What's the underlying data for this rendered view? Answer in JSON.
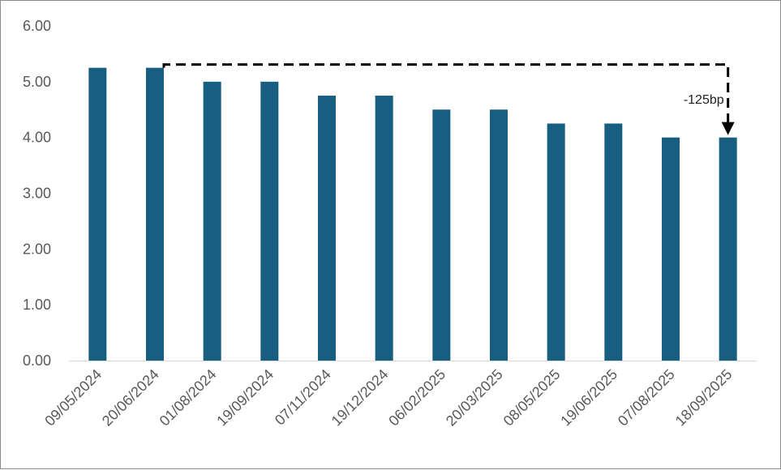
{
  "chart_data": {
    "type": "bar",
    "title": "",
    "xlabel": "",
    "ylabel": "",
    "categories": [
      "09/05/2024",
      "20/06/2024",
      "01/08/2024",
      "19/09/2024",
      "07/11/2024",
      "19/12/2024",
      "06/02/2025",
      "20/03/2025",
      "08/05/2025",
      "19/06/2025",
      "07/08/2025",
      "18/09/2025"
    ],
    "values": [
      5.25,
      5.25,
      5.0,
      5.0,
      4.75,
      4.75,
      4.5,
      4.5,
      4.25,
      4.25,
      4.0,
      4.0
    ],
    "ylim": [
      0,
      6
    ],
    "yticks": [
      "0.00",
      "1.00",
      "2.00",
      "3.00",
      "4.00",
      "5.00",
      "6.00"
    ],
    "grid": false,
    "bar_color": "#175e80",
    "annotation": {
      "text": "-125bp",
      "from_category": "20/06/2024",
      "to_category": "18/09/2025",
      "style": "dashed arrow"
    }
  }
}
